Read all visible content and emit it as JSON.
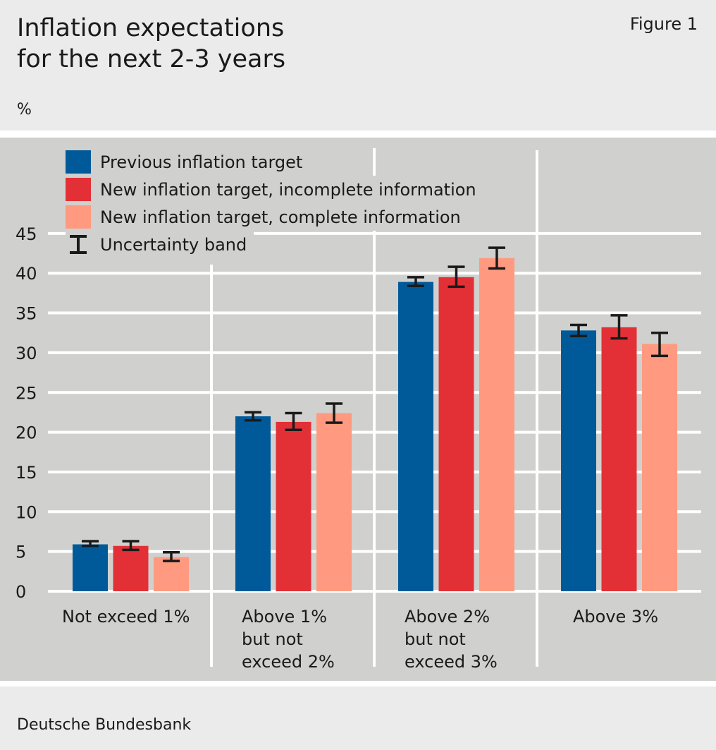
{
  "figure_label": "Figure 1",
  "title_lines": [
    "Inflation expectations",
    "for the next 2-3 years"
  ],
  "unit": "%",
  "source": "Deutsche Bundesbank",
  "colors": {
    "previous": "#005a9a",
    "incomplete": "#e33036",
    "complete": "#ff9a80",
    "background": "#d0d0ce"
  },
  "chart_data": {
    "type": "bar",
    "ylabel": "%",
    "ylim": [
      0,
      45
    ],
    "yticks": [
      0,
      5,
      10,
      15,
      20,
      25,
      30,
      35,
      40,
      45
    ],
    "grid": true,
    "legend_position": "top-left",
    "categories": [
      [
        "Not exceed 1%"
      ],
      [
        "Above 1%",
        "but not",
        "exceed 2%"
      ],
      [
        "Above 2%",
        "but not",
        "exceed 3%"
      ],
      [
        "Above 3%"
      ]
    ],
    "series": [
      {
        "name": "Previous inflation target",
        "values": [
          5.9,
          22.0,
          38.9,
          32.8
        ],
        "error_low": [
          5.7,
          21.5,
          38.4,
          32.1
        ],
        "error_high": [
          6.3,
          22.5,
          39.5,
          33.5
        ]
      },
      {
        "name": "New inflation target, incomplete information",
        "values": [
          5.7,
          21.3,
          39.5,
          33.2
        ],
        "error_low": [
          5.2,
          20.3,
          38.3,
          31.8
        ],
        "error_high": [
          6.3,
          22.4,
          40.8,
          34.7
        ]
      },
      {
        "name": "New inflation target, complete information",
        "values": [
          4.3,
          22.4,
          41.9,
          31.1
        ],
        "error_low": [
          3.8,
          21.2,
          40.6,
          29.6
        ],
        "error_high": [
          4.9,
          23.6,
          43.2,
          32.5
        ]
      }
    ],
    "error_legend": "Uncertainty band"
  }
}
